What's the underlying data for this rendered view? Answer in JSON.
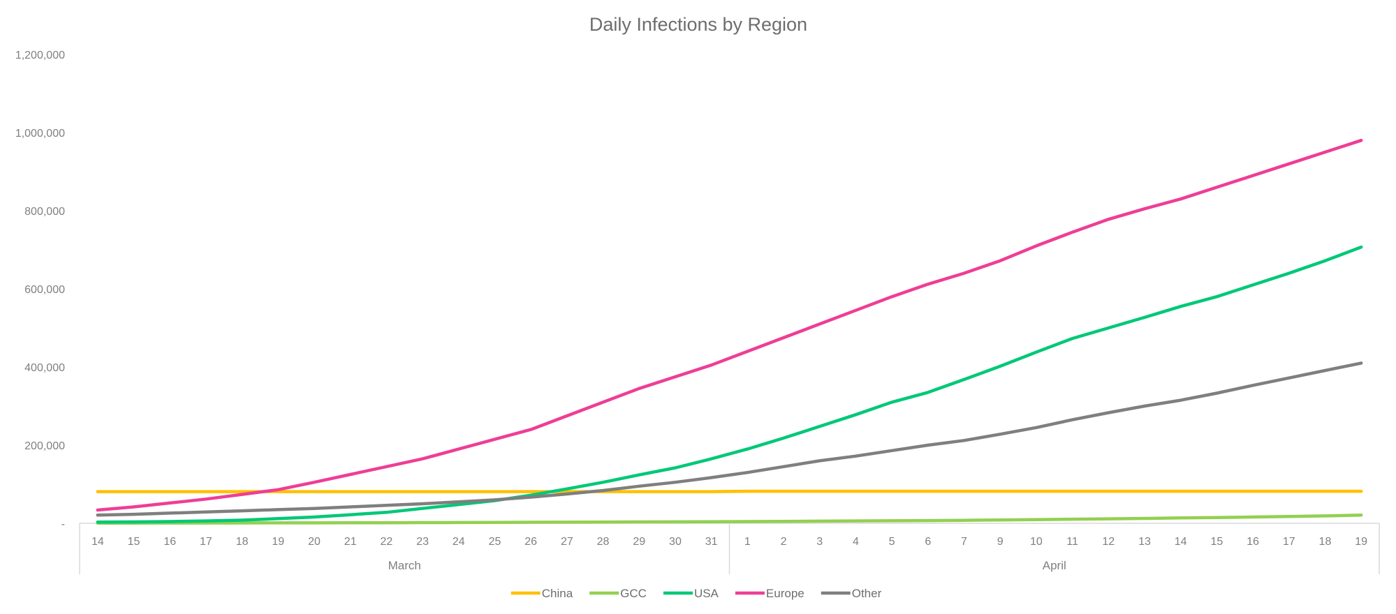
{
  "chart_data": {
    "type": "line",
    "title": "Daily Infections by Region",
    "xlabel": "",
    "ylabel": "",
    "ylim": [
      0,
      1200000
    ],
    "y_ticks": [
      "-",
      "200,000",
      "400,000",
      "600,000",
      "800,000",
      "1,000,000",
      "1,200,000"
    ],
    "grid": false,
    "legend_position": "bottom",
    "month_groups": [
      {
        "label": "March",
        "count": 18
      },
      {
        "label": "April",
        "count": 18
      }
    ],
    "categories": [
      "14",
      "15",
      "16",
      "17",
      "18",
      "19",
      "20",
      "21",
      "22",
      "23",
      "24",
      "25",
      "26",
      "27",
      "28",
      "29",
      "30",
      "31",
      "1",
      "2",
      "3",
      "4",
      "5",
      "6",
      "7",
      "9",
      "10",
      "11",
      "12",
      "13",
      "14",
      "15",
      "16",
      "17",
      "18",
      "19"
    ],
    "series": [
      {
        "name": "China",
        "color": "#FFC000",
        "values": [
          81000,
          81000,
          81000,
          81000,
          81000,
          81000,
          81000,
          81000,
          81000,
          81000,
          81000,
          81000,
          81000,
          81000,
          81000,
          81000,
          81000,
          81000,
          82000,
          82000,
          82000,
          82000,
          82000,
          82000,
          82000,
          82000,
          82000,
          82000,
          82000,
          82000,
          82000,
          82000,
          82000,
          82000,
          82000,
          82000
        ]
      },
      {
        "name": "GCC",
        "color": "#92D050",
        "values": [
          500,
          600,
          700,
          800,
          900,
          1000,
          1100,
          1300,
          1500,
          1700,
          2000,
          2300,
          2600,
          2900,
          3200,
          3500,
          3800,
          4100,
          4500,
          5000,
          5500,
          6000,
          6500,
          7000,
          7600,
          8500,
          9500,
          10500,
          11500,
          12500,
          13700,
          14800,
          16000,
          17500,
          19000,
          21000
        ]
      },
      {
        "name": "USA",
        "color": "#00C878",
        "values": [
          3000,
          3500,
          4500,
          6000,
          8000,
          12000,
          16000,
          22000,
          28000,
          38000,
          48000,
          58000,
          72000,
          88000,
          105000,
          124000,
          142000,
          165000,
          190000,
          218000,
          248000,
          278000,
          310000,
          335000,
          368000,
          402000,
          438000,
          473000,
          500000,
          527000,
          555000,
          580000,
          610000,
          640000,
          672000,
          707000
        ]
      },
      {
        "name": "Europe",
        "color": "#EE3E96",
        "values": [
          34000,
          42000,
          52000,
          62000,
          74000,
          86000,
          105000,
          125000,
          145000,
          165000,
          190000,
          215000,
          240000,
          275000,
          310000,
          345000,
          375000,
          405000,
          440000,
          475000,
          510000,
          545000,
          580000,
          612000,
          640000,
          672000,
          710000,
          745000,
          778000,
          805000,
          830000,
          860000,
          890000,
          920000,
          950000,
          980000
        ]
      },
      {
        "name": "Other",
        "color": "#7F7F7F",
        "values": [
          21000,
          23000,
          26000,
          29000,
          32000,
          35000,
          38000,
          42000,
          46000,
          50000,
          55000,
          60000,
          67000,
          75000,
          84000,
          95000,
          105000,
          117000,
          130000,
          145000,
          160000,
          172000,
          186000,
          200000,
          212000,
          228000,
          245000,
          265000,
          283000,
          300000,
          315000,
          333000,
          353000,
          372000,
          391000,
          410000
        ]
      }
    ]
  }
}
